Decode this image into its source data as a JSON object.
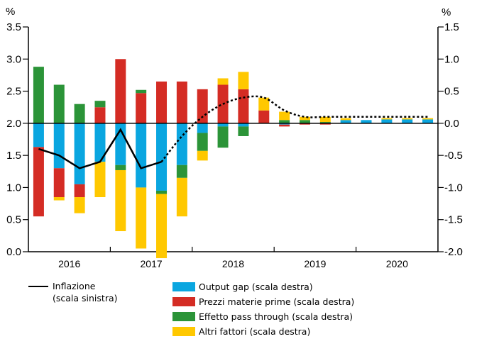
{
  "chart_data": {
    "type": "bar",
    "subtype": "stacked bar with line overlay, dual axis",
    "left_axis": {
      "unit": "%",
      "ylim": [
        0.0,
        3.5
      ],
      "ticks": [
        "0.0",
        "0.5",
        "1.0",
        "1.5",
        "2.0",
        "2.5",
        "3.0",
        "3.5"
      ]
    },
    "right_axis": {
      "unit": "%",
      "ylim": [
        -2.0,
        1.5
      ],
      "ticks": [
        "-2.0",
        "-1.5",
        "-1.0",
        "-0.5",
        "0.0",
        "0.5",
        "1.0",
        "1.5"
      ]
    },
    "x_years": [
      "2016",
      "2017",
      "2018",
      "2019",
      "2020"
    ],
    "quarters": [
      "2016Q1",
      "2016Q2",
      "2016Q3",
      "2016Q4",
      "2017Q1",
      "2017Q2",
      "2017Q3",
      "2017Q4",
      "2018Q1",
      "2018Q2",
      "2018Q3",
      "2018Q4",
      "2019Q1",
      "2019Q2",
      "2019Q3",
      "2019Q4",
      "2020Q1",
      "2020Q2",
      "2020Q3",
      "2020Q4"
    ],
    "series": [
      {
        "name": "Output gap (scala destra)",
        "color": "#0AA6E0",
        "axis": "right",
        "values": [
          -0.37,
          -0.7,
          -0.95,
          -0.6,
          -0.65,
          -1.0,
          -1.05,
          -0.65,
          -0.15,
          -0.05,
          -0.05,
          0.0,
          -0.02,
          0.0,
          0.0,
          0.05,
          0.05,
          0.06,
          0.06,
          0.06
        ]
      },
      {
        "name": "Prezzi materie prime (scala destra)",
        "color": "#D42C24",
        "axis": "right",
        "values": [
          -1.08,
          -0.45,
          -0.2,
          0.25,
          1.0,
          0.47,
          0.65,
          0.65,
          0.53,
          0.6,
          0.53,
          0.2,
          -0.03,
          -0.02,
          -0.02,
          0.0,
          0.0,
          0.0,
          0.0,
          0.0
        ]
      },
      {
        "name": "Effetto pass through (scala destra)",
        "color": "#2B9438",
        "axis": "right",
        "values": [
          0.88,
          0.6,
          0.3,
          0.1,
          -0.08,
          0.05,
          -0.05,
          -0.2,
          -0.28,
          -0.33,
          -0.15,
          0.0,
          0.05,
          0.05,
          0.02,
          0.0,
          0.0,
          0.0,
          0.0,
          0.0
        ]
      },
      {
        "name": "Altri fattori (scala destra)",
        "color": "#FFC800",
        "axis": "right",
        "values": [
          0.0,
          -0.05,
          -0.25,
          -0.55,
          -0.95,
          -0.95,
          -1.0,
          -0.6,
          -0.15,
          0.1,
          0.27,
          0.2,
          0.13,
          0.05,
          0.08,
          0.03,
          0.0,
          0.02,
          0.02,
          0.02
        ]
      },
      {
        "name": "Inflazione (scala sinistra)",
        "color": "#000000",
        "axis": "left",
        "type": "line",
        "values": [
          1.6,
          1.5,
          1.3,
          1.4,
          1.9,
          1.3,
          1.4,
          1.8,
          2.1,
          2.3,
          2.4,
          2.4,
          2.2,
          2.1,
          2.1,
          2.1,
          2.1,
          2.1,
          2.1,
          2.1
        ],
        "solid_until_index": 7
      }
    ],
    "legend": {
      "line_label_lines": [
        "Inflazione",
        "(scala sinistra)"
      ]
    }
  }
}
